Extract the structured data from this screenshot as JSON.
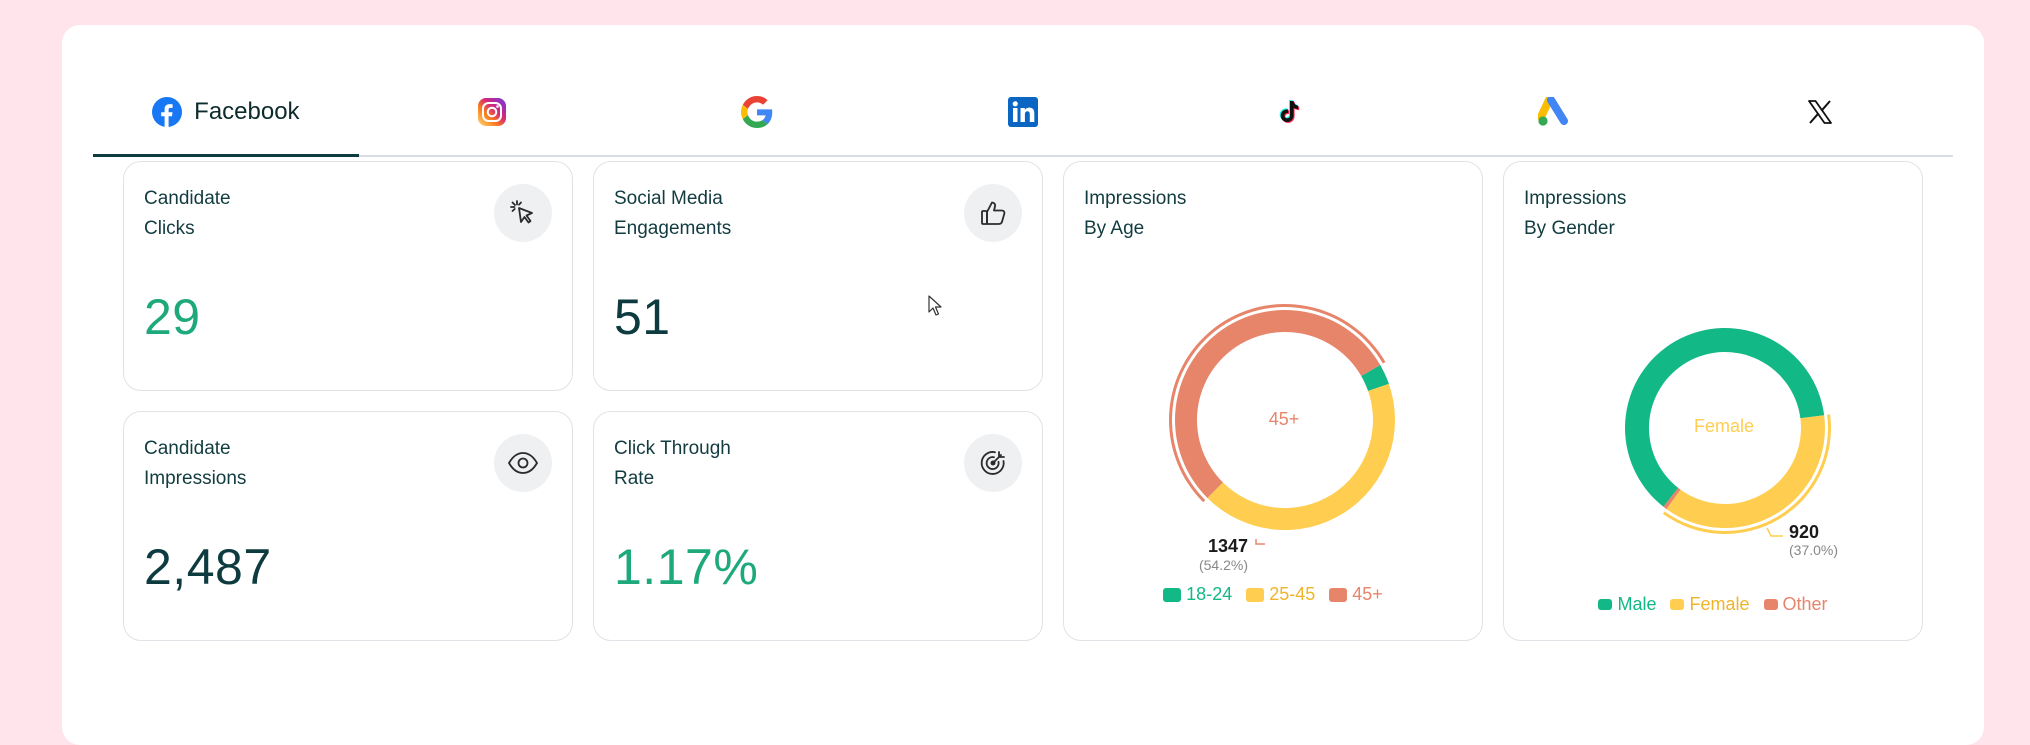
{
  "tabs": [
    {
      "name": "facebook",
      "label": "Facebook",
      "active": true,
      "icon": "facebook-icon"
    },
    {
      "name": "instagram",
      "label": "",
      "icon": "instagram-icon"
    },
    {
      "name": "google",
      "label": "",
      "icon": "google-icon"
    },
    {
      "name": "linkedin",
      "label": "",
      "icon": "linkedin-icon"
    },
    {
      "name": "tiktok",
      "label": "",
      "icon": "tiktok-icon"
    },
    {
      "name": "google-ads",
      "label": "",
      "icon": "google-ads-icon"
    },
    {
      "name": "x",
      "label": "",
      "icon": "x-icon"
    }
  ],
  "cards": {
    "candidate_clicks": {
      "title1": "Candidate",
      "title2": "Clicks",
      "value": "29",
      "icon": "cursor-click-icon"
    },
    "engagements": {
      "title1": "Social Media",
      "title2": "Engagements",
      "value": "51",
      "icon": "thumbs-up-icon"
    },
    "impressions": {
      "title1": "Candidate",
      "title2": "Impressions",
      "value": "2,487",
      "icon": "eye-icon"
    },
    "ctr": {
      "title1": "Click Through",
      "title2": "Rate",
      "value": "1.17%",
      "icon": "target-icon"
    }
  },
  "colors": {
    "green": "#12b886",
    "yellow": "#ffcd4f",
    "orange": "#e7856b",
    "dark": "#0d3b40"
  },
  "chart_data": [
    {
      "type": "pie",
      "title1": "Impressions",
      "title2": "By Age",
      "categories": [
        "18-24",
        "25-45",
        "45+"
      ],
      "values": [
        3.0,
        42.8,
        54.2
      ],
      "colors": [
        "#12b886",
        "#ffcd4f",
        "#e7856b"
      ],
      "center_label": "45+",
      "callout_value": "1347",
      "callout_pct": "(54.2%)"
    },
    {
      "type": "pie",
      "title1": "Impressions",
      "title2": "By Gender",
      "categories": [
        "Male",
        "Female",
        "Other"
      ],
      "values": [
        62.4,
        37.0,
        0.6
      ],
      "colors": [
        "#12b886",
        "#ffcd4f",
        "#e7856b"
      ],
      "center_label": "Female",
      "callout_value": "920",
      "callout_pct": "(37.0%)"
    }
  ]
}
